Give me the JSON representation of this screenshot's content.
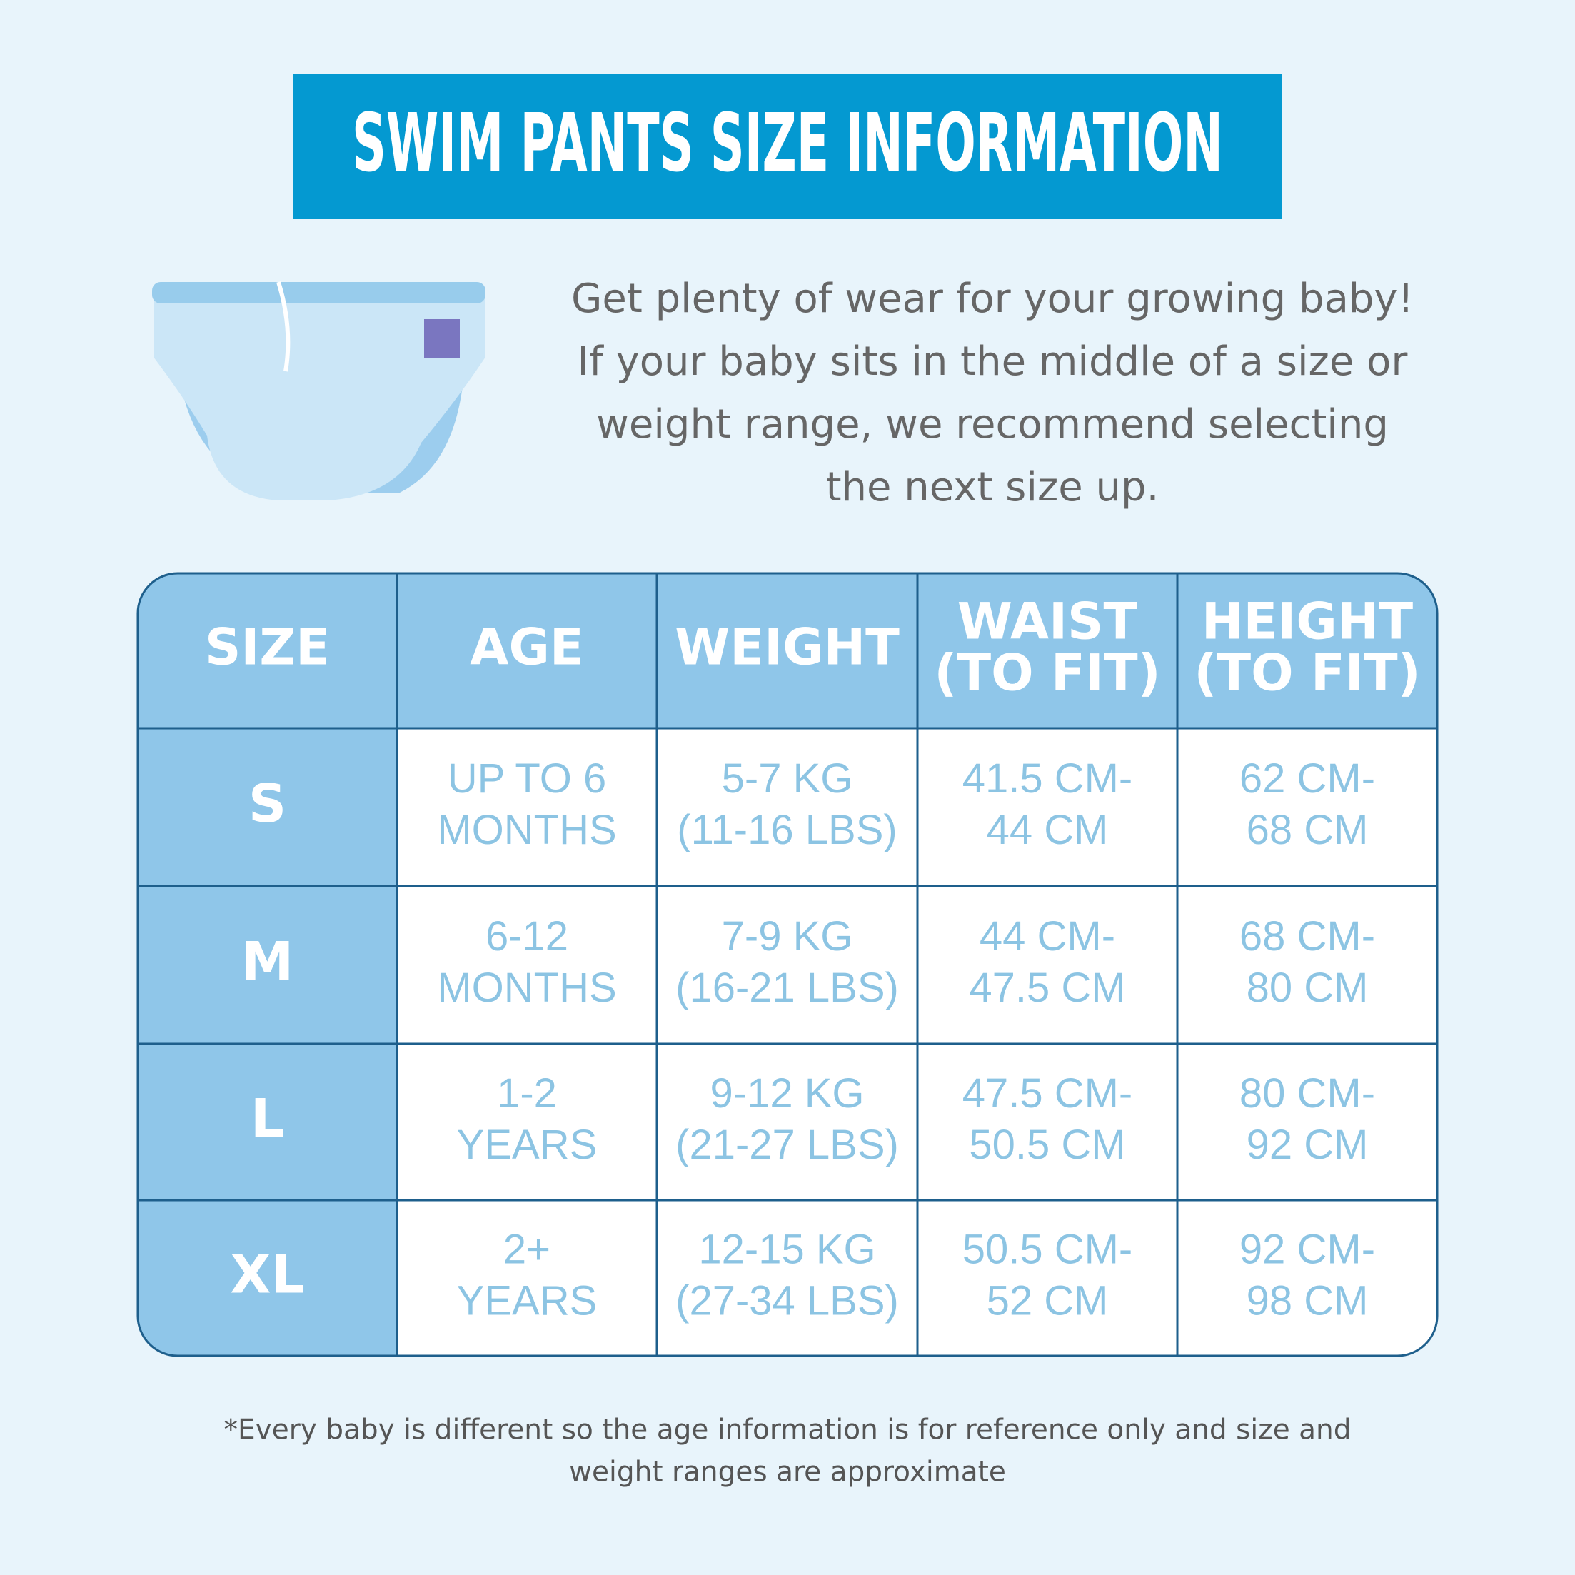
{
  "header": {
    "title": "SWIM PANTS SIZE INFORMATION"
  },
  "intro": {
    "lines": [
      "Get plenty of wear for your growing baby!",
      "If your baby sits in the middle of a size or",
      "weight range, we recommend selecting",
      "the next size up."
    ]
  },
  "table": {
    "columns": [
      [
        "SIZE"
      ],
      [
        "AGE"
      ],
      [
        "WEIGHT"
      ],
      [
        "WAIST",
        "(TO FIT)"
      ],
      [
        "HEIGHT",
        "(TO FIT)"
      ]
    ],
    "rows": [
      [
        [
          "S"
        ],
        [
          "UP TO 6",
          "MONTHS"
        ],
        [
          "5-7 KG",
          "(11-16 LBS)"
        ],
        [
          "41.5 CM-",
          "44 CM"
        ],
        [
          "62 CM-",
          "68 CM"
        ]
      ],
      [
        [
          "M"
        ],
        [
          "6-12",
          "MONTHS"
        ],
        [
          "7-9 KG",
          "(16-21 LBS)"
        ],
        [
          "44 CM-",
          "47.5 CM"
        ],
        [
          "68 CM-",
          "80 CM"
        ]
      ],
      [
        [
          "L"
        ],
        [
          "1-2",
          "YEARS"
        ],
        [
          "9-12 KG",
          "(21-27 LBS)"
        ],
        [
          "47.5 CM-",
          "50.5 CM"
        ],
        [
          "80 CM-",
          "92 CM"
        ]
      ],
      [
        [
          "XL"
        ],
        [
          "2+",
          "YEARS"
        ],
        [
          "12-15 KG",
          "(27-34 LBS)"
        ],
        [
          "50.5 CM-",
          "52 CM"
        ],
        [
          "92 CM-",
          "98 CM"
        ]
      ]
    ]
  },
  "footnote": {
    "lines": [
      "*Every baby is different so the age information is for reference only and size and",
      "weight ranges are approximate"
    ]
  }
}
